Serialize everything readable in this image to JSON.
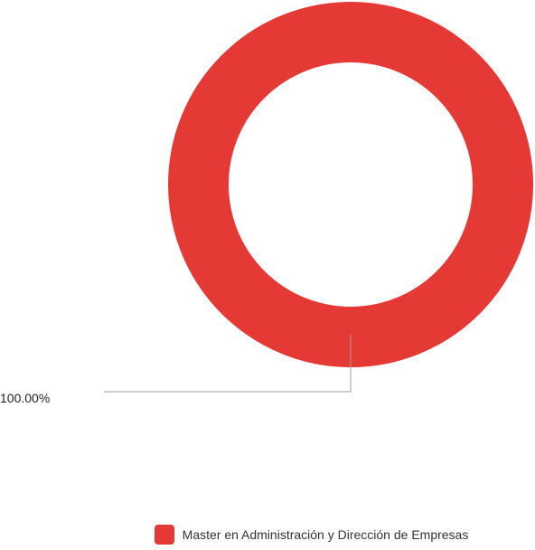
{
  "chart_data": {
    "type": "pie",
    "variant": "donut",
    "categories": [
      "Master en Administración y Dirección de Empresas"
    ],
    "values": [
      100.0
    ],
    "data_labels": [
      "100.00%"
    ],
    "colors": [
      "#e53935"
    ],
    "legend": {
      "position": "bottom",
      "entries": [
        "Master en Administración y Dirección de Empresas"
      ]
    }
  }
}
